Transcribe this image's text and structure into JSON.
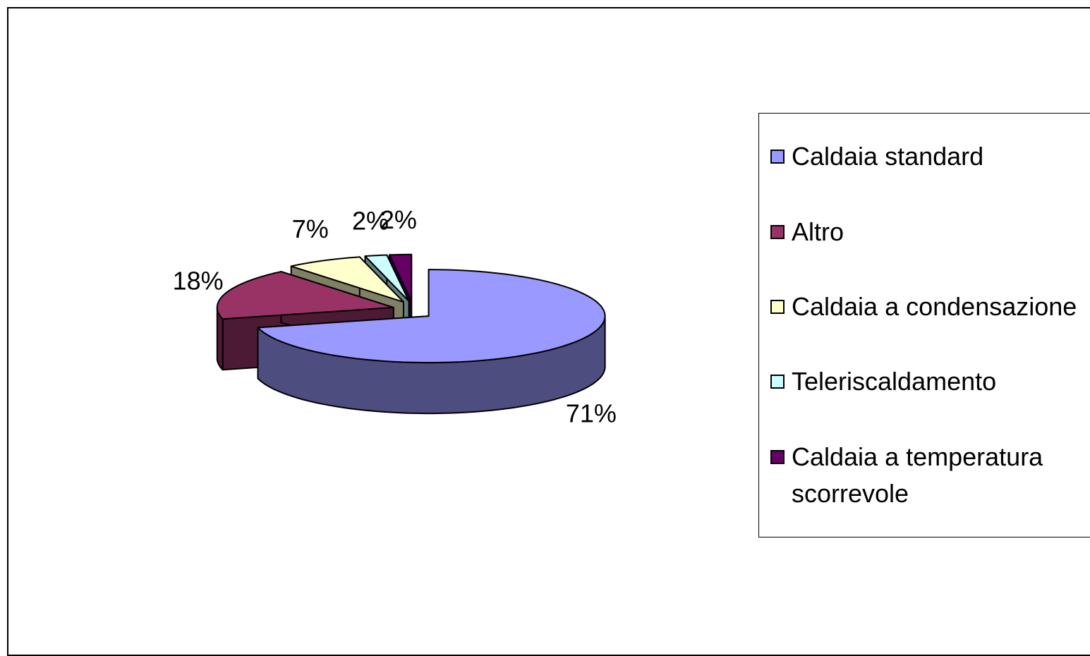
{
  "chart_data": {
    "type": "pie3d",
    "categories": [
      "Caldaia standard",
      "Altro",
      "Caldaia a condensazione",
      "Teleriscaldamento",
      "Caldaia a temperatura scorrevole"
    ],
    "values": [
      71,
      18,
      7,
      2,
      2
    ],
    "value_labels": [
      "71%",
      "18%",
      "7%",
      "2%",
      "2%"
    ],
    "colors": [
      "#9999ff",
      "#993366",
      "#ffffcc",
      "#ccffff",
      "#660066"
    ],
    "legend": "right"
  }
}
